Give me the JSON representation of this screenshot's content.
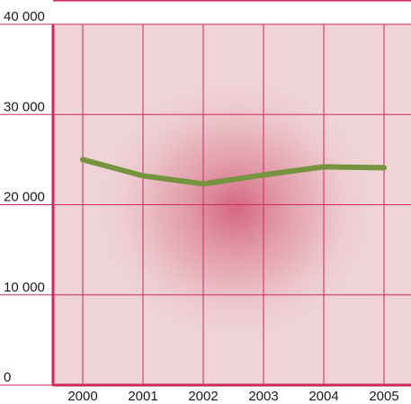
{
  "chart_data": {
    "type": "line",
    "title": "",
    "xlabel": "",
    "ylabel": "",
    "x": [
      "2000",
      "2001",
      "2002",
      "2003",
      "2004",
      "2005"
    ],
    "series": [
      {
        "values": [
          25000,
          23200,
          22300,
          23300,
          24200,
          24100
        ]
      }
    ],
    "ylim": [
      0,
      40000
    ],
    "yticks": [
      0,
      10000,
      20000,
      30000,
      40000
    ],
    "ytick_labels": [
      "0",
      "10 000",
      "20 000",
      "30 000",
      "40 000"
    ],
    "grid": true,
    "legend": "none",
    "colors": {
      "line": "#76943f",
      "grid": "#cc2a5c",
      "plot_bg": "#efd3d6",
      "glow": "#d4607a",
      "axis": "#cc2a5c"
    }
  }
}
